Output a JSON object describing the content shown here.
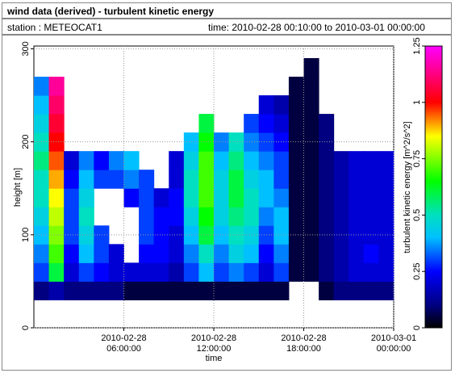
{
  "chart_data": {
    "type": "heatmap",
    "title": "wind data (derived) - turbulent kinetic energy",
    "station": "station : METEOCAT1",
    "time_range": "time: 2010-02-28 00:10:00 to 2010-03-01 00:00:00",
    "xlabel": "time",
    "ylabel": "height [m]",
    "colorbar_label": "turbulent kinetic energy [m^2/s^2]",
    "xlim": [
      0,
      24
    ],
    "ylim": [
      0,
      303
    ],
    "xticks": [
      {
        "value": 6,
        "label": "2010-02-28 06:00:00"
      },
      {
        "value": 12,
        "label": "2010-02-28 12:00:00"
      },
      {
        "value": 18,
        "label": "2010-02-28 18:00:00"
      },
      {
        "value": 24,
        "label": "2010-03-01 00:00:00"
      }
    ],
    "yticks": [
      0,
      100,
      200,
      300
    ],
    "clim": [
      0,
      1.25
    ],
    "cticks": [
      0,
      0.25,
      0.5,
      0.75,
      1,
      1.25
    ],
    "grid": true,
    "colorscale": [
      [
        0,
        "#000000"
      ],
      [
        0.1,
        "#000080"
      ],
      [
        0.25,
        "#0000ff"
      ],
      [
        0.4,
        "#00c0ff"
      ],
      [
        0.5,
        "#00e0c0"
      ],
      [
        0.65,
        "#00ff00"
      ],
      [
        0.85,
        "#ffff00"
      ],
      [
        1,
        "#ff0000"
      ],
      [
        1.25,
        "#ff00ff"
      ]
    ],
    "x_edges": [
      0,
      1,
      2,
      3,
      4,
      5,
      6,
      7,
      8,
      9,
      10,
      11,
      12,
      13,
      14,
      15,
      16,
      17,
      18,
      19,
      20,
      21,
      22,
      23,
      24
    ],
    "y_edges": [
      30,
      50,
      70,
      90,
      110,
      130,
      150,
      170,
      190,
      210,
      230,
      250,
      270,
      290
    ],
    "z": [
      [
        0.1,
        0.3,
        0.35,
        0.4,
        0.45,
        0.5,
        0.5,
        0.55,
        0.5,
        0.45,
        0.4,
        0.35,
        null
      ],
      [
        0.15,
        0.6,
        0.7,
        0.75,
        0.8,
        0.85,
        0.9,
        0.95,
        1.0,
        1.05,
        1.1,
        1.15,
        null
      ],
      [
        0.1,
        0.2,
        0.25,
        0.3,
        0.3,
        0.3,
        0.25,
        0.2,
        null,
        null,
        null,
        null,
        null
      ],
      [
        0.1,
        0.3,
        0.4,
        0.45,
        0.5,
        0.45,
        0.4,
        0.35,
        null,
        null,
        null,
        null,
        null
      ],
      [
        0.1,
        0.25,
        0.3,
        0.3,
        null,
        null,
        0.3,
        0.25,
        null,
        null,
        null,
        null,
        null
      ],
      [
        0.1,
        0.2,
        0.2,
        null,
        null,
        null,
        0.3,
        0.35,
        null,
        null,
        null,
        null,
        null
      ],
      [
        0.05,
        0.2,
        null,
        null,
        null,
        0.25,
        0.35,
        0.4,
        null,
        null,
        null,
        null,
        null
      ],
      [
        0.05,
        0.2,
        0.25,
        0.3,
        0.3,
        0.3,
        0.3,
        null,
        null,
        null,
        null,
        null,
        null
      ],
      [
        0.05,
        0.2,
        0.25,
        0.25,
        0.25,
        0.2,
        null,
        null,
        null,
        null,
        null,
        null,
        null
      ],
      [
        0.05,
        0.15,
        0.2,
        0.2,
        0.25,
        0.25,
        0.2,
        0.2,
        null,
        null,
        null,
        null,
        null
      ],
      [
        0.05,
        0.3,
        0.35,
        0.4,
        0.45,
        0.5,
        0.5,
        0.45,
        0.4,
        null,
        null,
        null,
        null
      ],
      [
        0.05,
        0.4,
        0.5,
        0.6,
        0.65,
        0.7,
        0.7,
        0.7,
        0.65,
        0.6,
        null,
        null,
        null
      ],
      [
        0.05,
        0.3,
        0.35,
        0.4,
        0.45,
        0.45,
        0.45,
        0.4,
        0.35,
        null,
        null,
        null,
        null
      ],
      [
        0.05,
        0.35,
        0.45,
        0.5,
        0.55,
        0.6,
        0.6,
        0.55,
        0.5,
        null,
        null,
        null,
        null
      ],
      [
        0.05,
        0.3,
        0.4,
        0.45,
        0.5,
        0.5,
        0.45,
        0.4,
        0.35,
        0.3,
        null,
        null,
        null
      ],
      [
        0.05,
        0.2,
        0.25,
        0.3,
        0.35,
        0.4,
        0.4,
        0.35,
        0.3,
        0.25,
        0.2,
        null,
        null
      ],
      [
        0.05,
        0.3,
        0.35,
        0.4,
        0.4,
        0.35,
        0.3,
        0.3,
        0.25,
        0.2,
        0.15,
        null,
        null
      ],
      [
        null,
        0.05,
        0.05,
        0.05,
        0.05,
        0.05,
        0.05,
        0.05,
        0.05,
        0.05,
        0.05,
        0.05,
        null
      ],
      [
        null,
        0.05,
        0.05,
        0.05,
        0.05,
        0.05,
        0.05,
        0.05,
        0.05,
        0.05,
        0.05,
        0.05,
        0.05
      ],
      [
        0.05,
        0.1,
        0.1,
        0.1,
        0.1,
        0.1,
        0.1,
        0.1,
        0.1,
        0.1,
        null,
        null,
        null
      ],
      [
        0.1,
        0.15,
        0.15,
        0.15,
        0.15,
        0.15,
        0.15,
        0.15,
        null,
        null,
        null,
        null,
        null
      ],
      [
        0.1,
        0.2,
        0.2,
        0.2,
        0.2,
        0.2,
        0.2,
        0.2,
        null,
        null,
        null,
        null,
        null
      ],
      [
        0.1,
        0.2,
        0.25,
        0.2,
        0.2,
        0.2,
        0.2,
        0.2,
        null,
        null,
        null,
        null,
        null
      ],
      [
        0.1,
        0.2,
        0.2,
        0.2,
        0.2,
        0.2,
        0.2,
        0.2,
        null,
        null,
        null,
        null,
        null
      ]
    ]
  }
}
